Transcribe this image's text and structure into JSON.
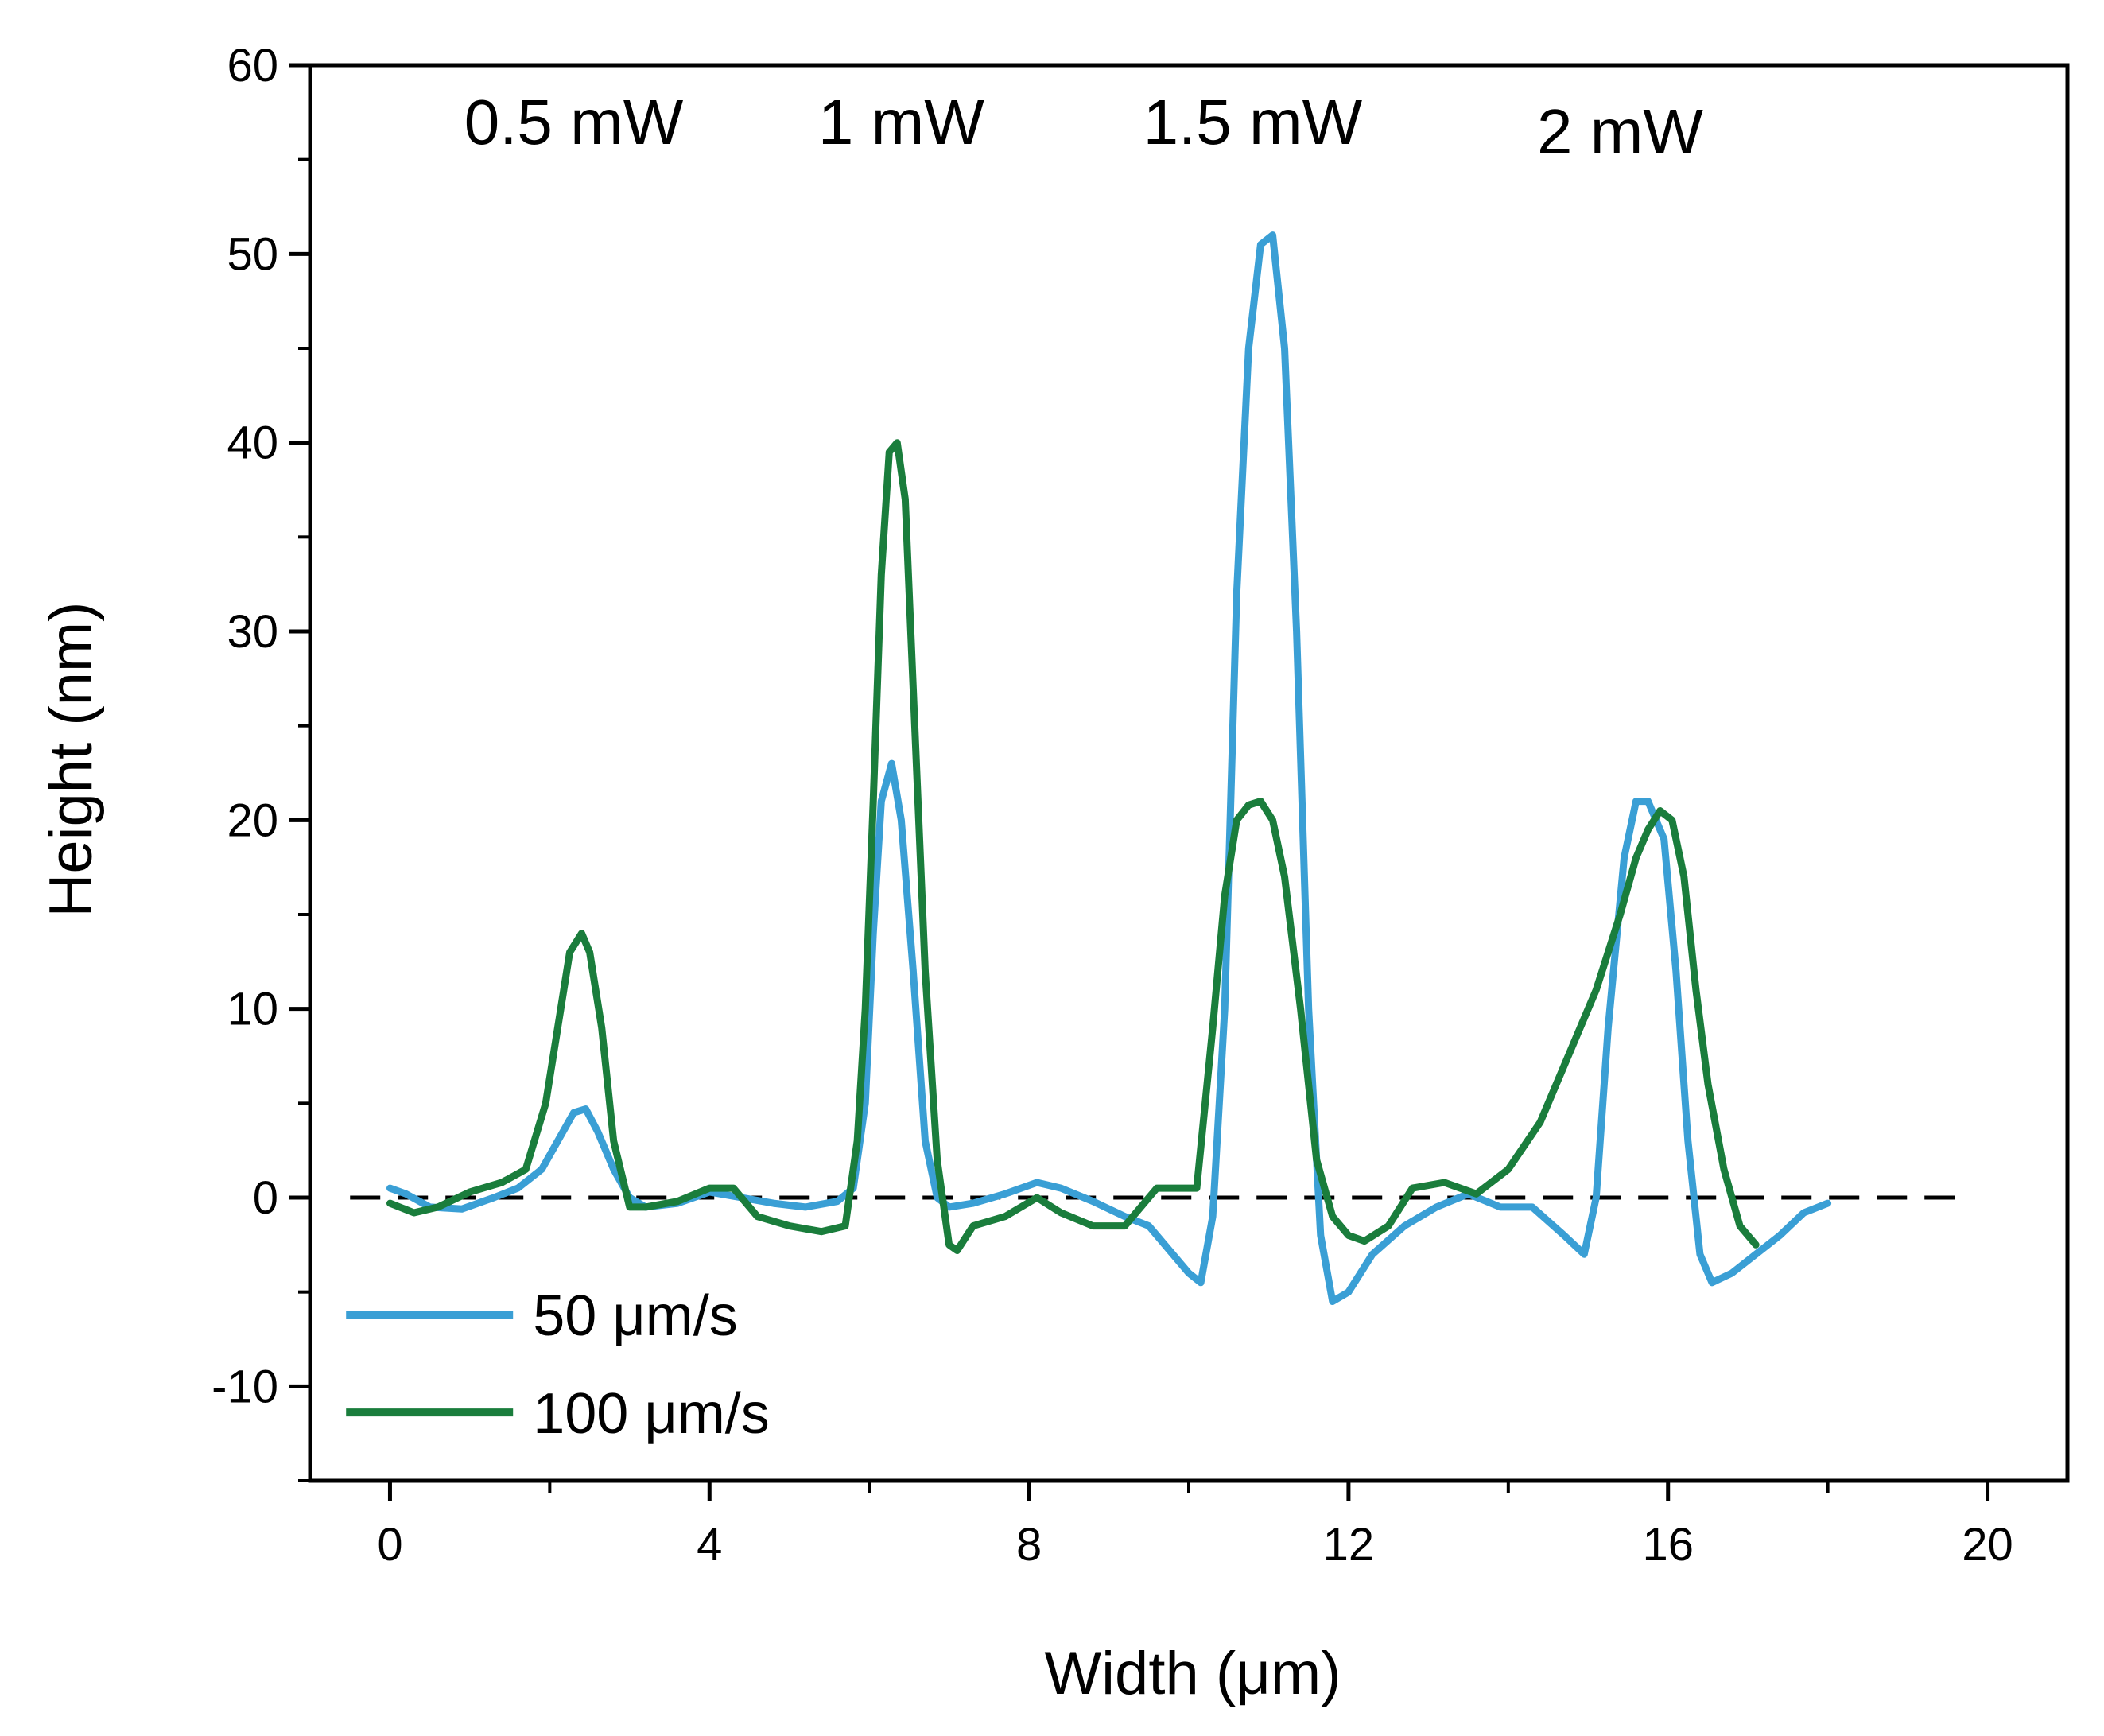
{
  "chart_data": {
    "type": "line",
    "title": "",
    "xlabel": "Width (μm)",
    "ylabel": "Height (nm)",
    "xlim": [
      -1,
      21
    ],
    "ylim": [
      -15,
      60
    ],
    "xticks": [
      0,
      4,
      8,
      12,
      16,
      20
    ],
    "xtick_labels": [
      "0",
      "4",
      "8",
      "12",
      "16",
      "20"
    ],
    "yticks": [
      -10,
      0,
      10,
      20,
      30,
      40,
      50,
      60
    ],
    "ytick_labels": [
      "-10",
      "0",
      "10",
      "20",
      "30",
      "40",
      "50",
      "60"
    ],
    "grid": false,
    "legend_position": "bottom-left",
    "baseline": {
      "y": 0,
      "style": "dashed",
      "x_range": [
        -0.5,
        19.8
      ]
    },
    "annotations": [
      {
        "text": "0.5 mW",
        "x": 2.3,
        "y": 57
      },
      {
        "text": "1 mW",
        "x": 6.4,
        "y": 57
      },
      {
        "text": "1.5 mW",
        "x": 10.8,
        "y": 57
      },
      {
        "text": "2 mW",
        "x": 15.4,
        "y": 56.5
      }
    ],
    "series": [
      {
        "name": "50 μm/s",
        "color": "#3a9fd5",
        "x": [
          0.0,
          0.2,
          0.5,
          0.9,
          1.3,
          1.6,
          1.9,
          2.1,
          2.3,
          2.45,
          2.6,
          2.8,
          3.0,
          3.2,
          3.6,
          4.0,
          4.4,
          4.8,
          5.2,
          5.6,
          5.8,
          5.95,
          6.05,
          6.15,
          6.28,
          6.4,
          6.55,
          6.7,
          6.85,
          7.0,
          7.3,
          7.7,
          8.1,
          8.4,
          8.8,
          9.2,
          9.5,
          9.8,
          10.0,
          10.15,
          10.3,
          10.45,
          10.6,
          10.75,
          10.9,
          11.05,
          11.2,
          11.35,
          11.5,
          11.65,
          11.8,
          12.0,
          12.3,
          12.7,
          13.1,
          13.5,
          13.9,
          14.3,
          14.7,
          14.95,
          15.1,
          15.25,
          15.45,
          15.6,
          15.75,
          15.95,
          16.1,
          16.25,
          16.4,
          16.55,
          16.8,
          17.1,
          17.4,
          17.7,
          18.0
        ],
        "y": [
          0.5,
          0.2,
          -0.5,
          -0.6,
          0.0,
          0.5,
          1.5,
          3.0,
          4.5,
          4.7,
          3.5,
          1.5,
          0.0,
          -0.5,
          -0.3,
          0.3,
          0.0,
          -0.3,
          -0.5,
          -0.2,
          0.5,
          5.0,
          14.0,
          21.0,
          23.0,
          20.0,
          12.0,
          3.0,
          0.0,
          -0.5,
          -0.3,
          0.2,
          0.8,
          0.5,
          -0.2,
          -1.0,
          -1.5,
          -3.0,
          -4.0,
          -4.5,
          -1.0,
          10.0,
          32.0,
          45.0,
          50.5,
          51.0,
          45.0,
          30.0,
          10.0,
          -2.0,
          -5.5,
          -5.0,
          -3.0,
          -1.5,
          -0.5,
          0.2,
          -0.5,
          -0.5,
          -2.0,
          -3.0,
          0.0,
          9.0,
          18.0,
          21.0,
          21.0,
          19.0,
          12.0,
          3.0,
          -3.0,
          -4.5,
          -4.0,
          -3.0,
          -2.0,
          -0.8,
          -0.3
        ]
      },
      {
        "name": "100 μm/s",
        "color": "#1a7d3c",
        "x": [
          0.0,
          0.3,
          0.6,
          1.0,
          1.4,
          1.7,
          1.95,
          2.1,
          2.25,
          2.4,
          2.5,
          2.65,
          2.8,
          3.0,
          3.2,
          3.6,
          4.0,
          4.3,
          4.6,
          5.0,
          5.4,
          5.7,
          5.85,
          5.95,
          6.05,
          6.15,
          6.25,
          6.35,
          6.45,
          6.55,
          6.7,
          6.85,
          7.0,
          7.1,
          7.3,
          7.7,
          8.1,
          8.4,
          8.8,
          9.2,
          9.6,
          9.9,
          10.1,
          10.3,
          10.45,
          10.6,
          10.75,
          10.9,
          11.05,
          11.2,
          11.4,
          11.6,
          11.8,
          12.0,
          12.2,
          12.5,
          12.8,
          13.2,
          13.6,
          14.0,
          14.4,
          14.8,
          15.1,
          15.4,
          15.6,
          15.75,
          15.9,
          16.05,
          16.2,
          16.35,
          16.5,
          16.7,
          16.9,
          17.1
        ],
        "y": [
          -0.3,
          -0.8,
          -0.5,
          0.3,
          0.8,
          1.5,
          5.0,
          9.0,
          13.0,
          14.0,
          13.0,
          9.0,
          3.0,
          -0.5,
          -0.5,
          -0.2,
          0.5,
          0.5,
          -1.0,
          -1.5,
          -1.8,
          -1.5,
          3.0,
          10.0,
          21.0,
          33.0,
          39.5,
          40.0,
          37.0,
          27.0,
          12.0,
          2.0,
          -2.5,
          -2.8,
          -1.5,
          -1.0,
          0.0,
          -0.8,
          -1.5,
          -1.5,
          0.5,
          0.5,
          0.5,
          9.0,
          16.0,
          20.0,
          20.8,
          21.0,
          20.0,
          17.0,
          10.0,
          2.0,
          -1.0,
          -2.0,
          -2.3,
          -1.5,
          0.5,
          0.8,
          0.2,
          1.5,
          4.0,
          8.0,
          11.0,
          15.0,
          18.0,
          19.5,
          20.5,
          20.0,
          17.0,
          11.0,
          6.0,
          1.5,
          -1.5,
          -2.5
        ]
      }
    ]
  }
}
